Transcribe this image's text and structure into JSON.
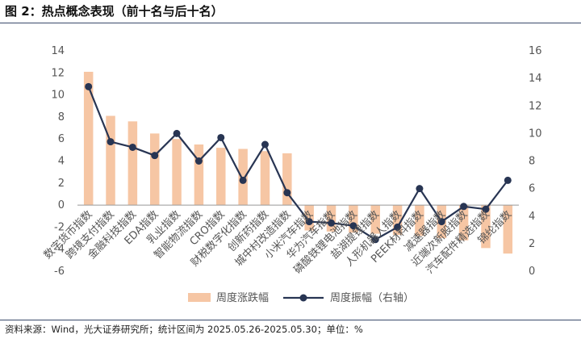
{
  "figure": {
    "title": "图 2：热点概念表现（前十名与后十名）",
    "source": "资料来源：Wind，光大证券研究所；统计区间为 2025.05.26-2025.05.30；单位：%"
  },
  "colors": {
    "bar": "#f6c6a4",
    "line": "#283553",
    "axis": "#999999"
  },
  "chart_data": {
    "type": "bar+line",
    "categories": [
      "数字货币指数",
      "跨境支付指数",
      "金融科技指数",
      "EDA指数",
      "乳业指数",
      "智能物流指数",
      "CRO指数",
      "财税数字化指数",
      "创新药指数",
      "城中村改造指数",
      "小米汽车指数",
      "华为汽车指数",
      "磷酸铁锂电池指数",
      "盐湖提锂指数",
      "人形机器人指数",
      "PEEK材料指数",
      "减速器指数",
      "近端次新股指数",
      "汽车配件精选指数",
      "锦纶指数"
    ],
    "series": [
      {
        "name": "周度涨跌幅",
        "type": "bar",
        "axis": "left",
        "values": [
          12.1,
          8.1,
          7.6,
          6.5,
          6.0,
          5.5,
          5.2,
          5.1,
          4.9,
          4.7,
          -2.3,
          -2.4,
          -2.5,
          -2.6,
          -2.7,
          -2.8,
          -3.0,
          -3.2,
          -3.9,
          -4.4
        ]
      },
      {
        "name": "周度振幅（右轴）",
        "type": "line",
        "axis": "right",
        "values": [
          13.4,
          9.4,
          9.0,
          8.4,
          10.0,
          8.0,
          9.7,
          6.6,
          9.2,
          5.7,
          3.6,
          3.5,
          3.3,
          2.3,
          3.2,
          6.0,
          3.6,
          4.7,
          4.5,
          6.6
        ]
      }
    ],
    "y_left": {
      "range": [
        -6,
        14
      ],
      "ticks": [
        "14",
        "12",
        "10",
        "8",
        "6",
        "4",
        "2",
        "0",
        "-2",
        "-4",
        "-6"
      ]
    },
    "y_right": {
      "range": [
        0,
        16
      ],
      "ticks": [
        "16",
        "14",
        "12",
        "10",
        "8",
        "6",
        "4",
        "2",
        "0"
      ]
    },
    "legend": {
      "position": "bottom",
      "items": [
        "周度涨跌幅",
        "周度振幅（右轴）"
      ]
    },
    "grid": false
  }
}
